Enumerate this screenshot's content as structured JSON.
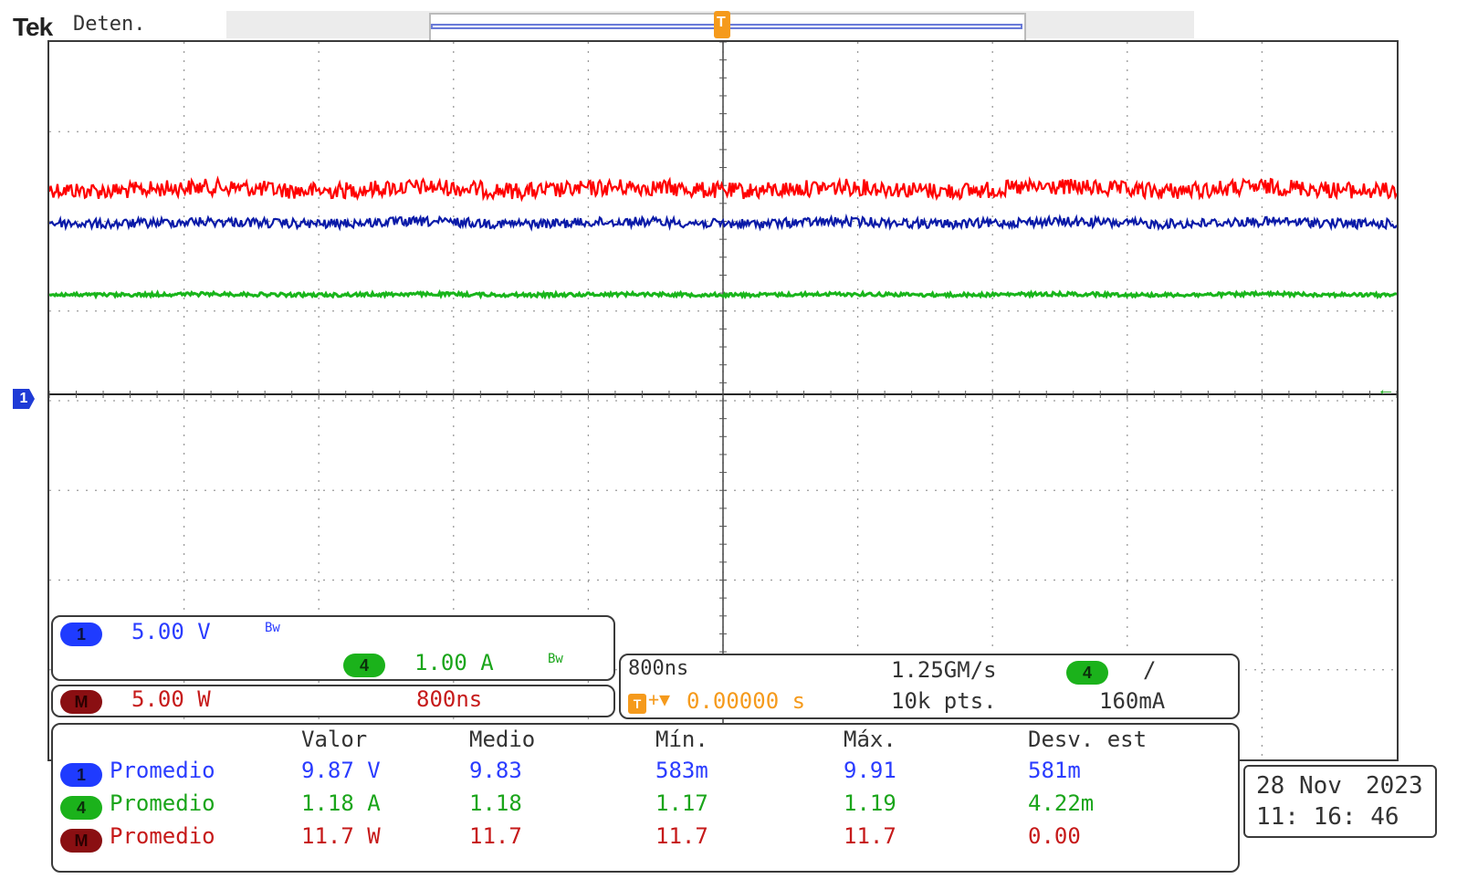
{
  "header": {
    "brand": "Tek",
    "status": "Deten.",
    "trigger_label": "T"
  },
  "screen": {
    "divisions_x": 10,
    "divisions_y": 8,
    "traces": [
      {
        "name": "red-trace",
        "color": "#ff0000",
        "level_fraction": 0.205,
        "noise": 14
      },
      {
        "name": "blue-trace",
        "color": "#0a1aa8",
        "level_fraction": 0.252,
        "noise": 8
      },
      {
        "name": "green-trace",
        "color": "#19b51b",
        "level_fraction": 0.352,
        "noise": 3
      }
    ],
    "channel_marker": "1",
    "right_marker": "←"
  },
  "channel_panel": {
    "ch1": {
      "badge": "1",
      "scale": "5.00 V",
      "coupling": "Bw",
      "color": "#2a3cff"
    },
    "ch4": {
      "badge": "4",
      "scale": "1.00 A",
      "coupling": "Bw",
      "color": "#1aa51a"
    },
    "math": {
      "badge": "M",
      "scale": "5.00 W",
      "timebase": "800ns",
      "color": "#c61a1a"
    }
  },
  "timebase_panel": {
    "horizontal": "800ns",
    "sample_rate": "1.25GM/s",
    "trigger_channel": "4",
    "trigger_slope": "/",
    "trigger_position_icon": "T",
    "trigger_position": "0.00000 s",
    "record_length": "10k pts.",
    "trigger_level": "160mA"
  },
  "measurements": {
    "columns": [
      "Valor",
      "Medio",
      "Mín.",
      "Máx.",
      "Desv. est"
    ],
    "rows": [
      {
        "badge": "1",
        "label": "Promedio",
        "color": "#2a3cff",
        "values": [
          "9.87 V",
          "9.83",
          "583m",
          "9.91",
          "581m"
        ]
      },
      {
        "badge": "4",
        "label": "Promedio",
        "color": "#1aa51a",
        "values": [
          "1.18 A",
          "1.18",
          "1.17",
          "1.19",
          "4.22m"
        ]
      },
      {
        "badge": "M",
        "label": "Promedio",
        "color": "#c61a1a",
        "values": [
          "11.7 W",
          "11.7",
          "11.7",
          "11.7",
          "0.00"
        ]
      }
    ]
  },
  "datetime": {
    "date": "28 Nov",
    "year": "2023",
    "time": "11: 16: 46"
  }
}
